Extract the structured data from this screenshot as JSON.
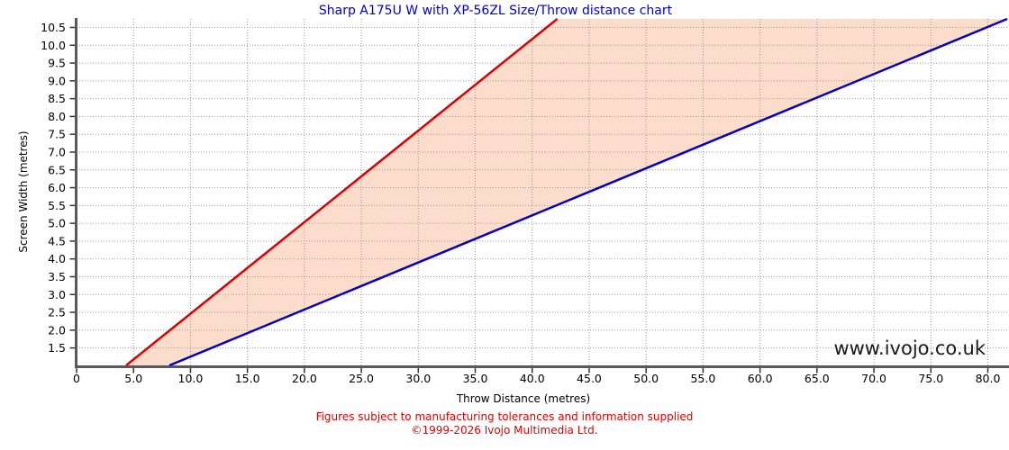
{
  "page": {
    "background": "#ffffff"
  },
  "watermark": {
    "text": "www.ivojo.co.uk",
    "color": "#1a1a1a"
  },
  "footer": {
    "disclaimer": "Figures subject to manufacturing tolerances and information supplied",
    "copyright": "©1999-2026 Ivojo Multimedia Ltd.",
    "color": "#dd0000"
  },
  "chart_data": {
    "type": "area",
    "title": "Sharp A175U W with XP-56ZL Size/Throw distance chart",
    "title_color": "#0000cc",
    "xlabel": "Throw Distance (metres)",
    "ylabel": "Screen Width (metres)",
    "xlim": [
      0,
      81.7
    ],
    "ylim": [
      1.01,
      10.74
    ],
    "grid": true,
    "grid_color": "#999999",
    "axis_color": "#595959",
    "tick_color": "#333333",
    "tick_label_color": "#000000",
    "legend": "none",
    "x_ticks": [
      0,
      5,
      10,
      15,
      20,
      25,
      30,
      35,
      40,
      45,
      50,
      55,
      60,
      65,
      70,
      75,
      80
    ],
    "x_tick_labels": [
      "0",
      "5.0",
      "10.0",
      "15.0",
      "20.0",
      "25.0",
      "30.0",
      "35.0",
      "40.0",
      "45.0",
      "50.0",
      "55.0",
      "60.0",
      "65.0",
      "70.0",
      "75.0",
      "80.0"
    ],
    "y_ticks": [
      1.5,
      2.0,
      2.5,
      3.0,
      3.5,
      4.0,
      4.5,
      5.0,
      5.5,
      6.0,
      6.5,
      7.0,
      7.5,
      8.0,
      8.5,
      9.0,
      9.5,
      10.0,
      10.5
    ],
    "y_tick_labels": [
      "1.5",
      "2.0",
      "2.5",
      "3.0",
      "3.5",
      "4.0",
      "4.5",
      "5.0",
      "5.5",
      "6.0",
      "6.5",
      "7.0",
      "7.5",
      "8.0",
      "8.5",
      "9.0",
      "9.5",
      "10.0",
      "10.5"
    ],
    "series": [
      {
        "name": "min-throw-line",
        "color": "#dd0000",
        "points": [
          [
            4.35,
            1.01
          ],
          [
            42.2,
            10.74
          ]
        ]
      },
      {
        "name": "max-throw-line",
        "color": "#0000cc",
        "points": [
          [
            8.15,
            1.01
          ],
          [
            81.7,
            10.74
          ]
        ]
      }
    ],
    "fill_between_color": "#fcdccb"
  }
}
